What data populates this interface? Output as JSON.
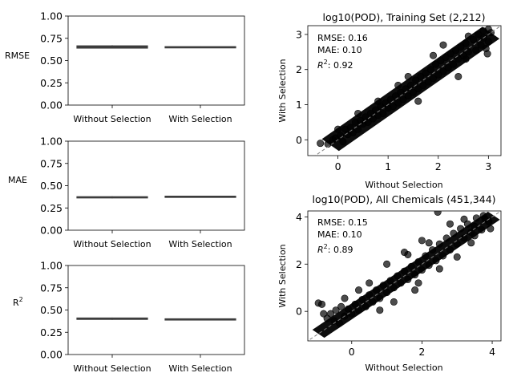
{
  "colors": {
    "box": "#3d3d3d",
    "point_fill": "#000000",
    "point_alpha": 0.7,
    "identity_line": "#808080",
    "axis": "#000000"
  },
  "chart_data": [
    {
      "type": "box",
      "ylabel": "RMSE",
      "categories": [
        "Without Selection",
        "With Selection"
      ],
      "boxes": [
        {
          "min": 0.635,
          "q1": 0.64,
          "median": 0.65,
          "q3": 0.665,
          "max": 0.672
        },
        {
          "min": 0.646,
          "q1": 0.648,
          "median": 0.652,
          "q3": 0.656,
          "max": 0.659
        }
      ],
      "ylim": [
        0,
        1
      ],
      "yticks": [
        "0.00",
        "0.25",
        "0.50",
        "0.75",
        "1.00"
      ]
    },
    {
      "type": "box",
      "ylabel": "MAE",
      "categories": [
        "Without Selection",
        "With Selection"
      ],
      "boxes": [
        {
          "min": 0.358,
          "q1": 0.363,
          "median": 0.37,
          "q3": 0.376,
          "max": 0.381
        },
        {
          "min": 0.374,
          "q1": 0.376,
          "median": 0.379,
          "q3": 0.382,
          "max": 0.384
        }
      ],
      "ylim": [
        0,
        1
      ],
      "yticks": [
        "0.00",
        "0.25",
        "0.50",
        "0.75",
        "1.00"
      ]
    },
    {
      "type": "box",
      "ylabel": "R^2",
      "categories": [
        "Without Selection",
        "With Selection"
      ],
      "boxes": [
        {
          "min": 0.39,
          "q1": 0.395,
          "median": 0.402,
          "q3": 0.41,
          "max": 0.415
        },
        {
          "min": 0.396,
          "q1": 0.397,
          "median": 0.399,
          "q3": 0.401,
          "max": 0.402
        }
      ],
      "ylim": [
        0,
        1
      ],
      "yticks": [
        "0.00",
        "0.25",
        "0.50",
        "0.75",
        "1.00"
      ]
    },
    {
      "type": "scatter",
      "title": "log10(POD), Training Set (2,212)",
      "xlabel": "Without Selection",
      "ylabel": "With Selection",
      "xlim": [
        -0.6,
        3.25
      ],
      "ylim": [
        -0.45,
        3.25
      ],
      "xticks": [
        0,
        1,
        2,
        3
      ],
      "yticks": [
        0,
        1,
        2,
        3
      ],
      "stats": {
        "rmse": "RMSE: 0.16",
        "mae": "MAE: 0.10",
        "r2_label": "R",
        "r2_value": ": 0.92"
      },
      "identity_line": true,
      "points": [
        [
          -0.35,
          -0.1
        ],
        [
          -0.2,
          -0.12
        ],
        [
          -0.1,
          0.0
        ],
        [
          -0.05,
          0.05
        ],
        [
          0.05,
          0.12
        ],
        [
          0.1,
          -0.05
        ],
        [
          0.15,
          0.3
        ],
        [
          0.2,
          0.15
        ],
        [
          0.25,
          0.35
        ],
        [
          0.3,
          0.2
        ],
        [
          0.35,
          0.5
        ],
        [
          0.4,
          0.3
        ],
        [
          0.45,
          0.55
        ],
        [
          0.5,
          0.45
        ],
        [
          0.55,
          0.65
        ],
        [
          0.6,
          0.5
        ],
        [
          0.65,
          0.75
        ],
        [
          0.7,
          0.6
        ],
        [
          0.75,
          0.85
        ],
        [
          0.8,
          0.7
        ],
        [
          0.85,
          0.95
        ],
        [
          0.9,
          0.75
        ],
        [
          0.95,
          1.05
        ],
        [
          1.0,
          0.9
        ],
        [
          1.05,
          1.15
        ],
        [
          1.1,
          0.95
        ],
        [
          1.15,
          1.25
        ],
        [
          1.2,
          1.05
        ],
        [
          1.25,
          1.35
        ],
        [
          1.3,
          1.15
        ],
        [
          1.35,
          1.45
        ],
        [
          1.4,
          1.25
        ],
        [
          1.45,
          1.55
        ],
        [
          1.5,
          1.35
        ],
        [
          1.55,
          1.7
        ],
        [
          1.6,
          1.45
        ],
        [
          1.65,
          1.8
        ],
        [
          1.7,
          1.55
        ],
        [
          1.75,
          1.9
        ],
        [
          1.8,
          1.65
        ],
        [
          1.85,
          2.0
        ],
        [
          1.9,
          1.75
        ],
        [
          1.95,
          2.15
        ],
        [
          2.0,
          1.85
        ],
        [
          2.05,
          2.25
        ],
        [
          2.1,
          1.95
        ],
        [
          2.15,
          2.35
        ],
        [
          2.2,
          2.05
        ],
        [
          2.25,
          2.45
        ],
        [
          2.3,
          2.15
        ],
        [
          2.35,
          2.55
        ],
        [
          2.4,
          2.3
        ],
        [
          2.45,
          2.65
        ],
        [
          2.5,
          2.4
        ],
        [
          2.55,
          2.75
        ],
        [
          2.6,
          2.5
        ],
        [
          2.7,
          2.85
        ],
        [
          2.75,
          2.55
        ],
        [
          2.8,
          3.0
        ],
        [
          2.85,
          2.7
        ],
        [
          2.9,
          2.9
        ],
        [
          2.95,
          2.6
        ],
        [
          3.0,
          2.8
        ],
        [
          3.05,
          3.05
        ],
        [
          3.0,
          3.15
        ],
        [
          2.9,
          3.1
        ],
        [
          2.98,
          2.45
        ],
        [
          2.55,
          2.3
        ],
        [
          1.2,
          1.55
        ],
        [
          0.8,
          1.1
        ],
        [
          0.4,
          0.75
        ],
        [
          1.6,
          1.1
        ],
        [
          2.1,
          2.7
        ],
        [
          2.4,
          1.8
        ],
        [
          1.9,
          2.4
        ],
        [
          0.0,
          0.3
        ],
        [
          1.4,
          1.8
        ],
        [
          2.6,
          2.95
        ]
      ]
    },
    {
      "type": "scatter",
      "title": "log10(POD), All Chemicals (451,344)",
      "xlabel": "Without Selection",
      "ylabel": "With Selection",
      "xlim": [
        -1.25,
        4.25
      ],
      "ylim": [
        -1.25,
        4.25
      ],
      "xticks": [
        0,
        2,
        4
      ],
      "yticks": [
        0,
        2,
        4
      ],
      "stats": {
        "rmse": "RMSE: 0.15",
        "mae": "MAE: 0.10",
        "r2_label": "R",
        "r2_value": ": 0.89"
      },
      "identity_line": true,
      "points": [
        [
          -0.95,
          0.35
        ],
        [
          -0.85,
          0.3
        ],
        [
          -0.8,
          -0.1
        ],
        [
          -0.7,
          -0.3
        ],
        [
          -0.6,
          -0.1
        ],
        [
          -0.5,
          -0.4
        ],
        [
          -0.45,
          0.05
        ],
        [
          -0.35,
          -0.5
        ],
        [
          -0.3,
          0.2
        ],
        [
          -0.2,
          -0.2
        ],
        [
          -0.1,
          0.1
        ],
        [
          0.0,
          -0.1
        ],
        [
          0.1,
          0.3
        ],
        [
          0.2,
          0.05
        ],
        [
          0.3,
          0.5
        ],
        [
          0.4,
          0.2
        ],
        [
          0.5,
          0.7
        ],
        [
          0.6,
          0.4
        ],
        [
          0.7,
          0.9
        ],
        [
          0.8,
          0.55
        ],
        [
          0.9,
          1.1
        ],
        [
          1.0,
          0.8
        ],
        [
          1.1,
          1.3
        ],
        [
          1.2,
          1.0
        ],
        [
          1.3,
          1.5
        ],
        [
          1.4,
          1.2
        ],
        [
          1.5,
          1.7
        ],
        [
          1.6,
          1.35
        ],
        [
          1.7,
          1.9
        ],
        [
          1.8,
          1.55
        ],
        [
          1.9,
          2.1
        ],
        [
          2.0,
          1.75
        ],
        [
          2.1,
          2.35
        ],
        [
          2.2,
          1.95
        ],
        [
          2.3,
          2.6
        ],
        [
          2.4,
          2.15
        ],
        [
          2.5,
          2.85
        ],
        [
          2.6,
          2.35
        ],
        [
          2.7,
          3.1
        ],
        [
          2.8,
          2.6
        ],
        [
          2.9,
          3.3
        ],
        [
          3.0,
          2.85
        ],
        [
          3.1,
          3.5
        ],
        [
          3.2,
          3.1
        ],
        [
          3.3,
          3.7
        ],
        [
          3.4,
          3.35
        ],
        [
          3.5,
          3.6
        ],
        [
          3.55,
          3.95
        ],
        [
          3.7,
          3.45
        ],
        [
          3.75,
          4.05
        ],
        [
          3.8,
          3.9
        ],
        [
          3.9,
          3.8
        ],
        [
          3.95,
          3.5
        ],
        [
          3.5,
          3.2
        ],
        [
          2.45,
          4.2
        ],
        [
          2.0,
          3.0
        ],
        [
          1.5,
          2.5
        ],
        [
          1.0,
          2.0
        ],
        [
          2.5,
          1.8
        ],
        [
          3.0,
          2.3
        ],
        [
          1.8,
          0.9
        ],
        [
          1.2,
          0.4
        ],
        [
          0.5,
          1.2
        ],
        [
          3.2,
          3.9
        ],
        [
          2.8,
          3.7
        ],
        [
          -0.2,
          0.55
        ],
        [
          0.2,
          0.9
        ],
        [
          1.6,
          2.4
        ],
        [
          2.2,
          2.9
        ],
        [
          3.4,
          2.9
        ],
        [
          1.9,
          1.2
        ],
        [
          0.8,
          0.05
        ]
      ]
    }
  ]
}
